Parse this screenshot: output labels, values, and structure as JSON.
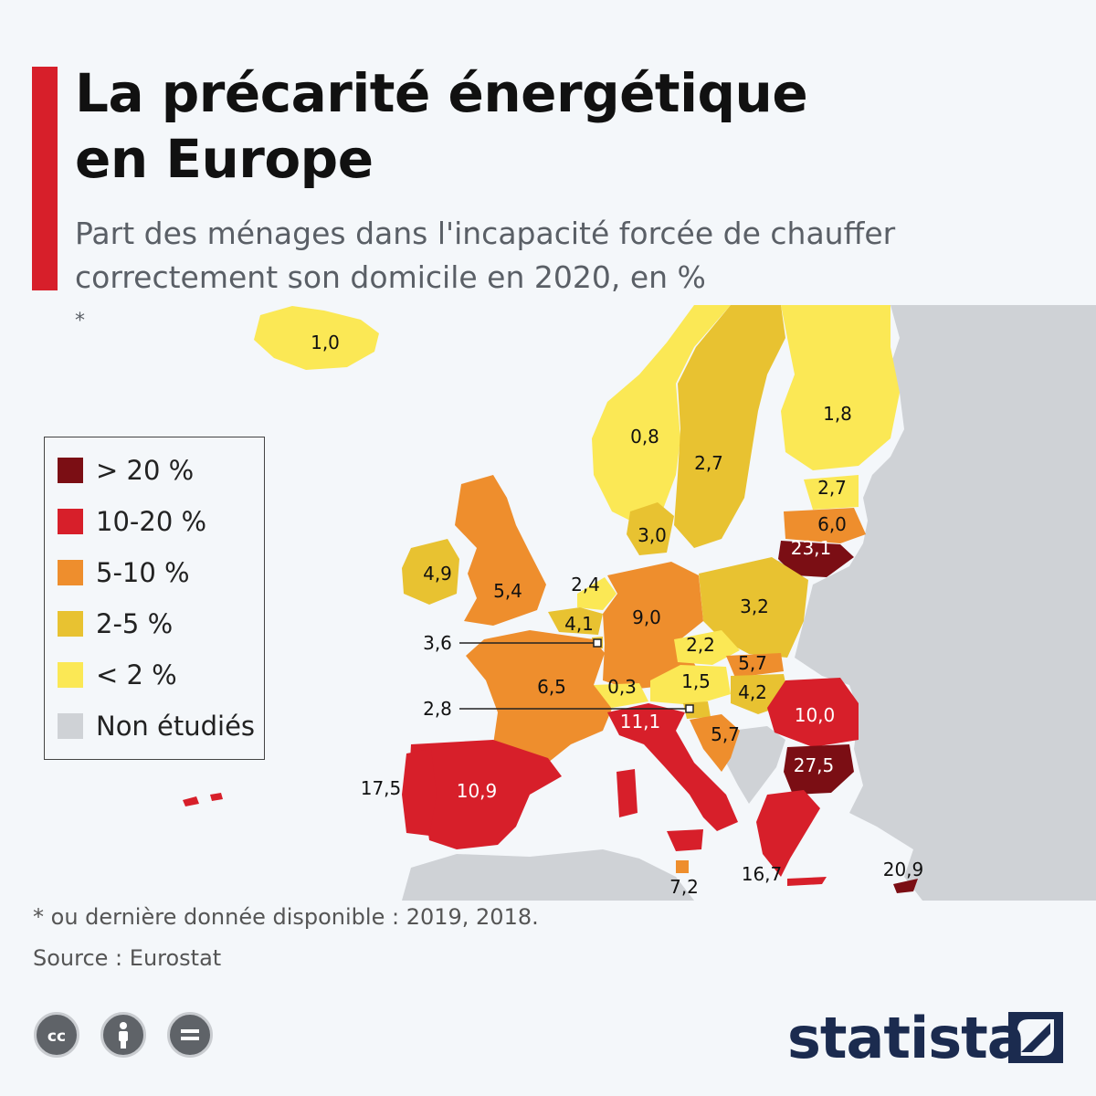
{
  "header": {
    "title_line1": "La précarité énergétique",
    "title_line2": "en Europe",
    "subtitle_line1": "Part des ménages dans l'incapacité forcée de chauffer",
    "subtitle_line2": "correctement son domicile en 2020, en %",
    "subtitle_mark": "*"
  },
  "legend": [
    {
      "label": "> 20 %",
      "color": "#7b0e14"
    },
    {
      "label": "10-20 %",
      "color": "#d71f2a"
    },
    {
      "label": "5-10 %",
      "color": "#ee8e2d"
    },
    {
      "label": "2-5 %",
      "color": "#e8c231"
    },
    {
      "label": "< 2 %",
      "color": "#fbe855"
    },
    {
      "label": "Non étudiés",
      "color": "#cfd2d6"
    }
  ],
  "map_labels": {
    "iceland": "1,0",
    "norway": "0,8",
    "sweden": "2,7",
    "finland": "1,8",
    "estonia": "2,7",
    "latvia": "6,0",
    "lithuania": "23,1",
    "denmark": "3,0",
    "ireland": "4,9",
    "uk": "5,4",
    "netherlands": "2,4",
    "belgium": "4,1",
    "luxembourg": "3,6",
    "germany": "9,0",
    "poland": "3,2",
    "czechia": "2,2",
    "slovakia": "5,7",
    "austria": "1,5",
    "hungary": "4,2",
    "switzerland": "0,3",
    "slovenia": "2,8",
    "croatia": "5,7",
    "france": "6,5",
    "romania": "10,0",
    "bulgaria": "27,5",
    "italy": "11,1",
    "spain": "10,9",
    "portugal": "17,5",
    "malta": "7,2",
    "greece": "16,7",
    "cyprus": "20,9"
  },
  "footer": {
    "footnote": "* ou dernière donnée disponible : 2019, 2018.",
    "source": "Source : Eurostat",
    "brand": "statista"
  },
  "icons": [
    "cc-icon",
    "by-icon",
    "nd-icon",
    "statista-logo-icon"
  ]
}
